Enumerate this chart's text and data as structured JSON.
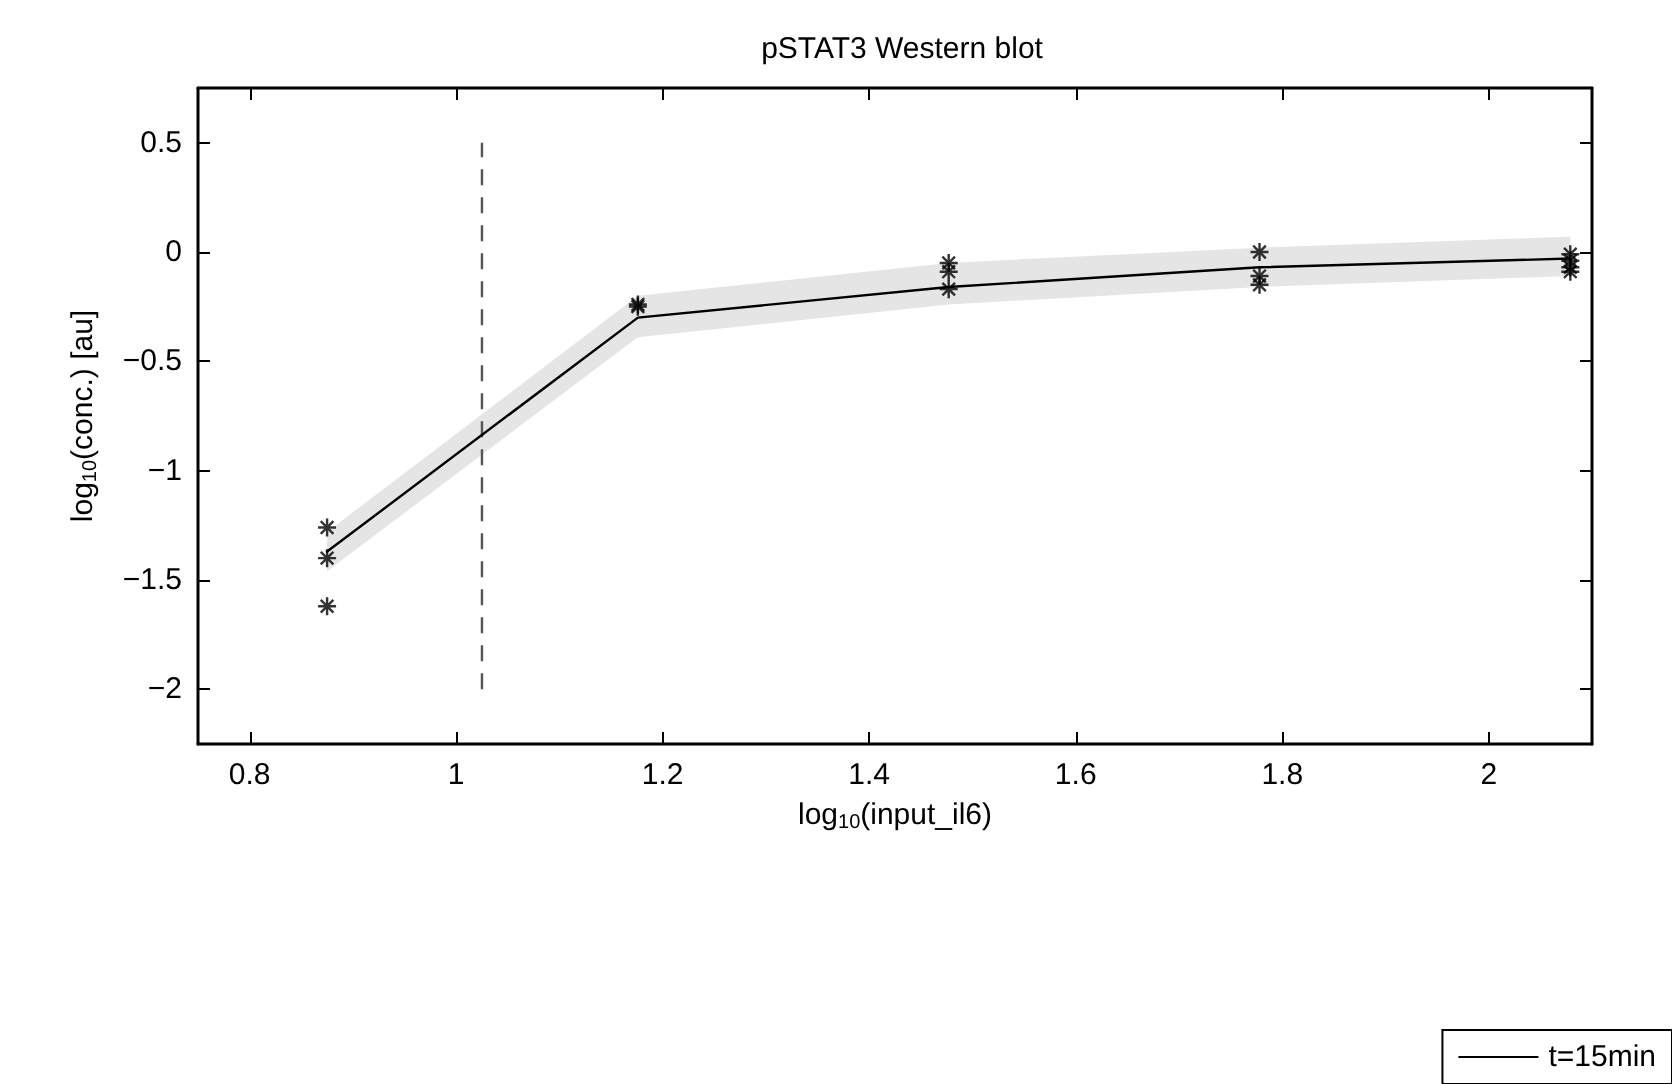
{
  "chart_data": {
    "type": "line",
    "title": "pSTAT3 Western blot",
    "xlabel": "log$_{10}$(input_il6)",
    "ylabel": "log$_{10}$(conc.) [au]",
    "xlim": [
      0.75,
      2.1
    ],
    "xticks": [
      0.8,
      1,
      1.2,
      1.4,
      1.6,
      1.8,
      2
    ],
    "ylim": [
      -2.25,
      0.75
    ],
    "yticks": [
      {
        "value": -2,
        "label": "−2"
      },
      {
        "value": -1.5,
        "label": "−1.5"
      },
      {
        "value": -1,
        "label": "−1"
      },
      {
        "value": -0.5,
        "label": "−0.5"
      },
      0,
      0.5
    ],
    "grid": false,
    "legend": "bottom right",
    "series": [
      {
        "name": "t=15min",
        "color": "#000000",
        "marker": "none",
        "line_style": "solid",
        "x": [
          0.875,
          1.176,
          1.477,
          1.778,
          2.079
        ],
        "values": [
          -1.37,
          -0.3,
          -0.16,
          -0.07,
          -0.03
        ],
        "lower": [
          -1.46,
          -0.39,
          -0.24,
          -0.16,
          -0.11
        ],
        "upper": [
          -1.28,
          -0.2,
          -0.05,
          0.02,
          0.07
        ]
      },
      {
        "type": "scatter",
        "color": "#000000",
        "marker": "cross",
        "x": [
          0.875,
          0.875,
          0.875,
          1.176,
          1.176,
          1.477,
          1.477,
          1.477,
          1.778,
          1.778,
          1.778,
          2.079,
          2.079,
          2.079,
          2.079
        ],
        "values": [
          -1.26,
          -1.4,
          -1.62,
          -0.24,
          -0.25,
          -0.05,
          -0.09,
          -0.17,
          0.0,
          -0.11,
          -0.15,
          -0.01,
          -0.04,
          -0.07,
          -0.09
        ]
      }
    ],
    "ref_lines": [
      {
        "axis": "x",
        "value": 1.025,
        "color": "#555555",
        "line_style": "dashed"
      }
    ]
  }
}
